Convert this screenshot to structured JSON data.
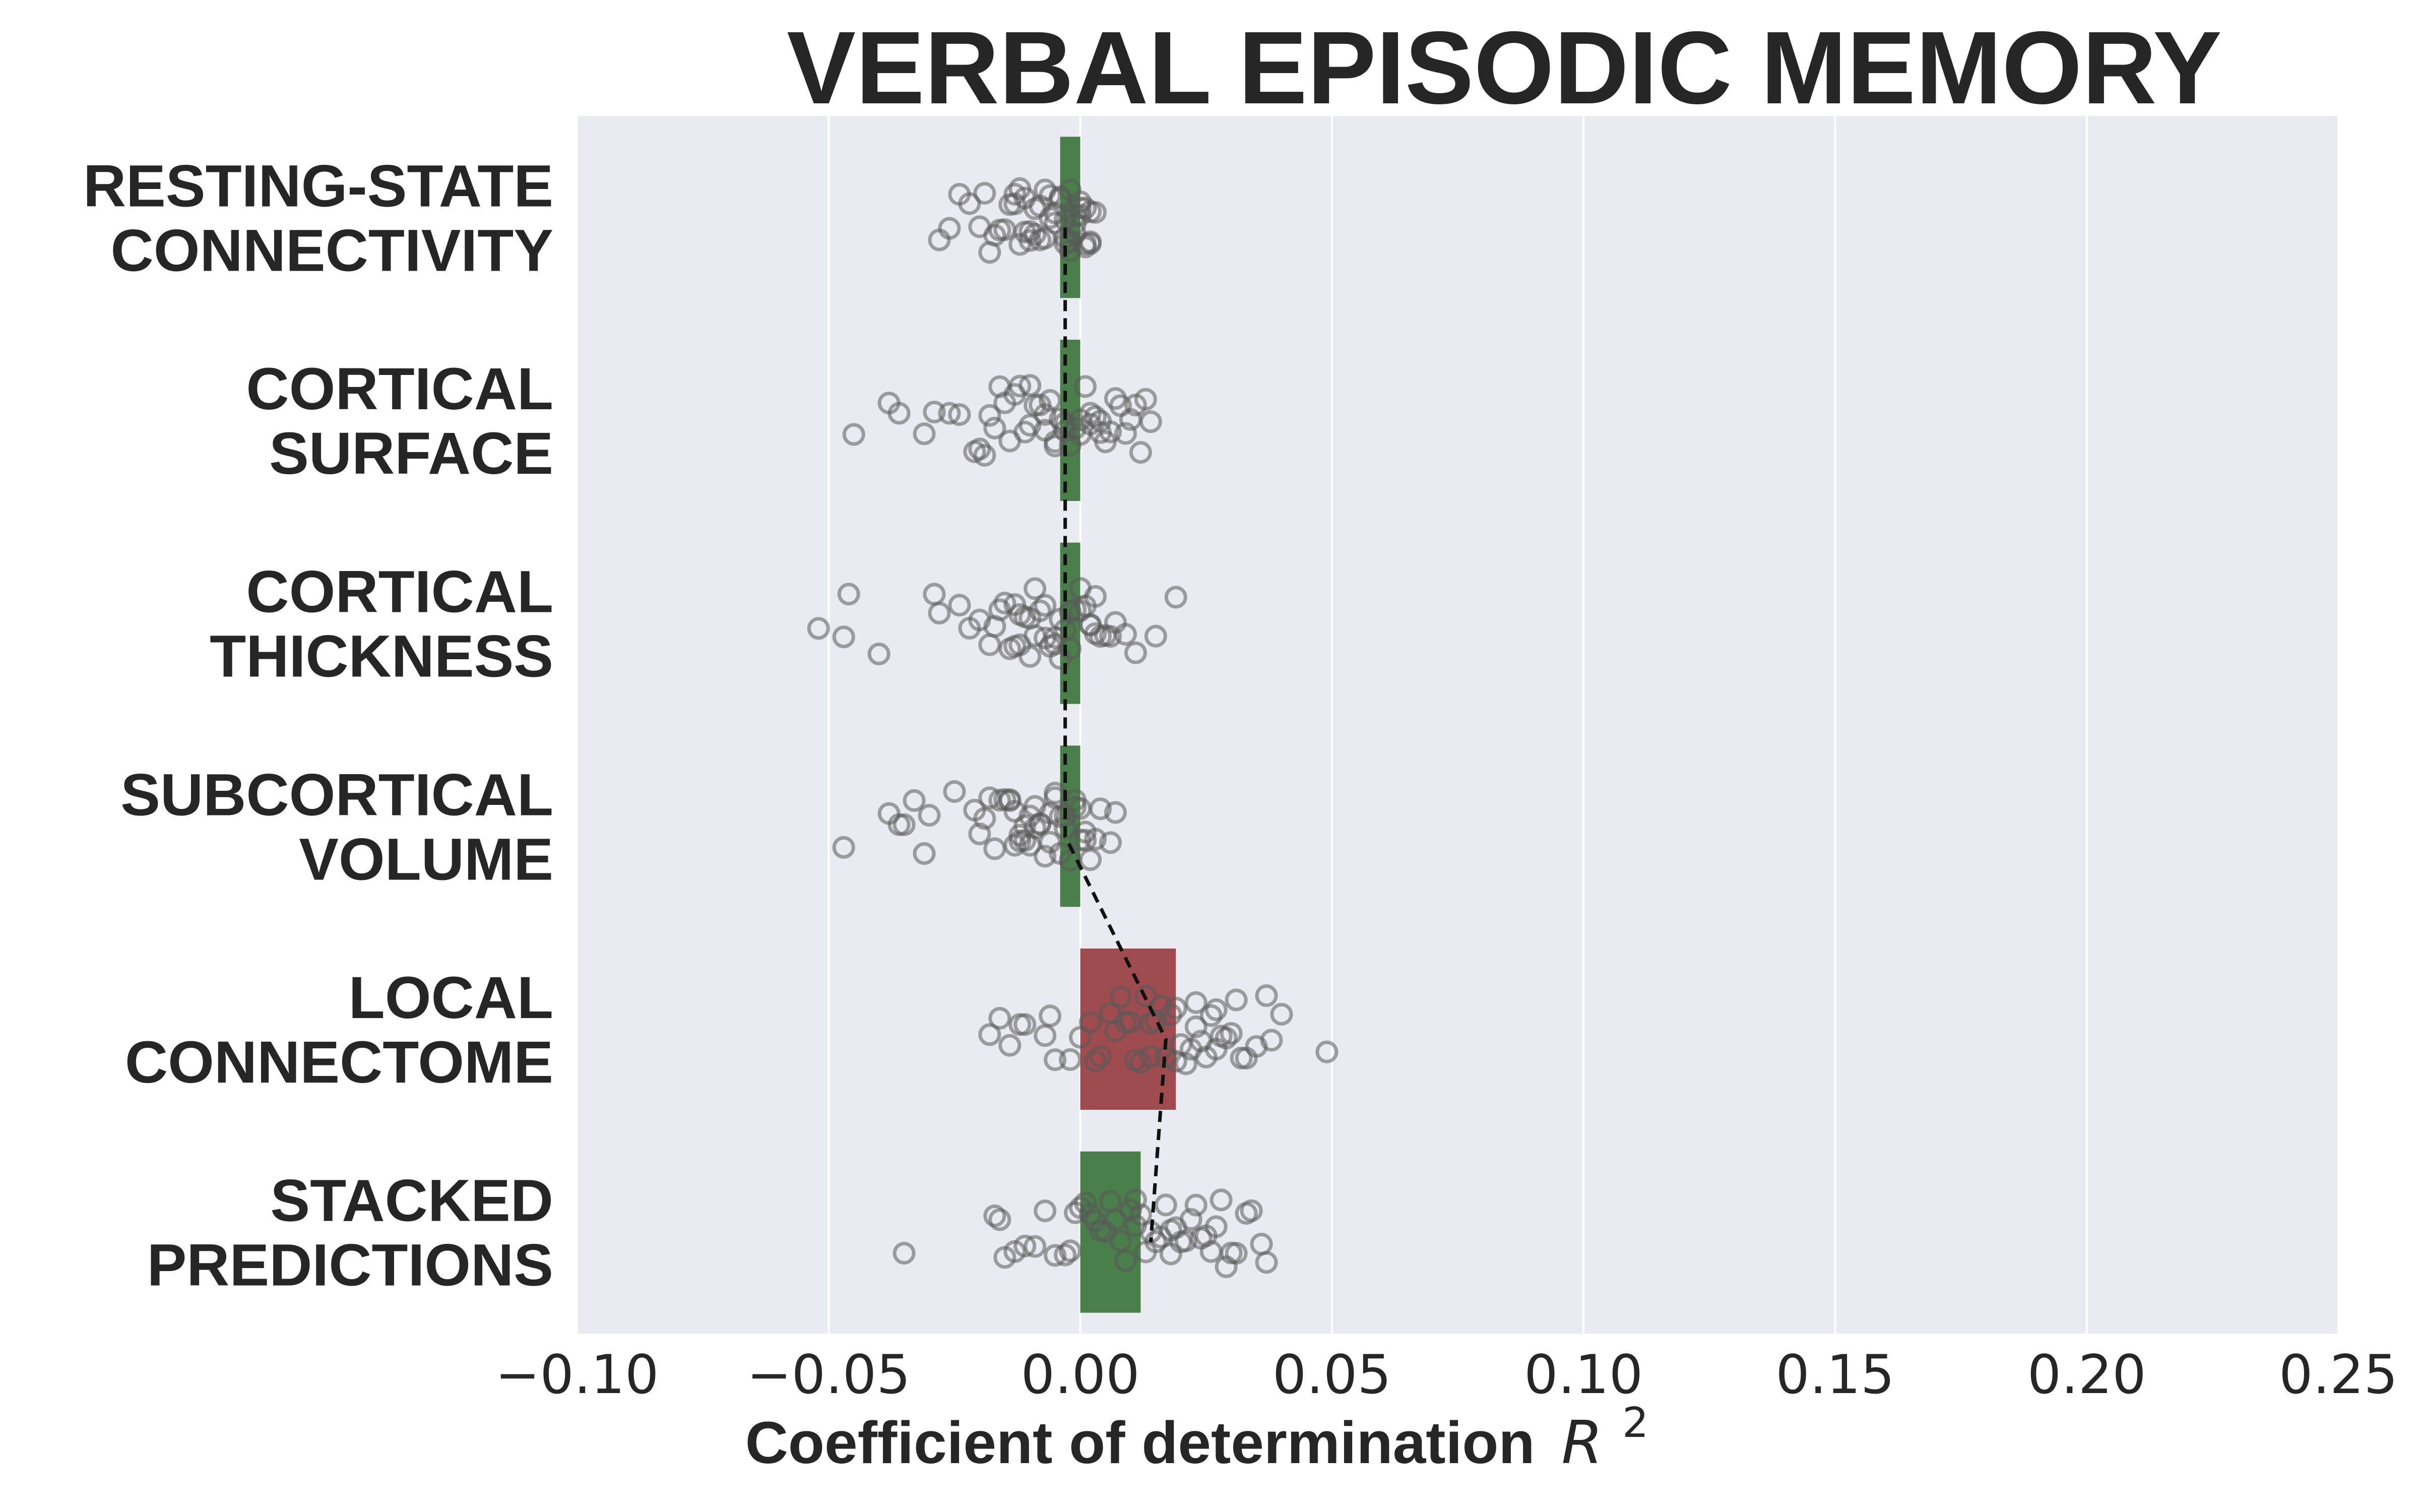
{
  "chart_data": {
    "type": "bar",
    "title": "VERBAL EPISODIC MEMORY",
    "xlabel": "Coefficient of determination",
    "xlabel_math": "R",
    "xlabel_sup": "2",
    "xlim": [
      -0.1,
      0.25
    ],
    "xticks": [
      -0.1,
      -0.05,
      0.0,
      0.05,
      0.1,
      0.15,
      0.2,
      0.25
    ],
    "xtick_labels": [
      "−0.10",
      "−0.05",
      "0.00",
      "0.05",
      "0.10",
      "0.15",
      "0.20",
      "0.25"
    ],
    "grid": true,
    "orientation": "horizontal",
    "categories": [
      [
        "RESTING-STATE",
        "CONNECTIVITY"
      ],
      [
        "CORTICAL",
        "SURFACE"
      ],
      [
        "CORTICAL",
        "THICKNESS"
      ],
      [
        "SUBCORTICAL",
        "VOLUME"
      ],
      [
        "LOCAL",
        "CONNECTOME"
      ],
      [
        "STACKED",
        "PREDICTIONS"
      ]
    ],
    "values": [
      -0.004,
      -0.004,
      -0.004,
      -0.004,
      0.019,
      0.012
    ],
    "bar_colors": [
      "#4a7e4a",
      "#4a7e4a",
      "#4a7e4a",
      "#4a7e4a",
      "#9e4c50",
      "#4a7e4a"
    ],
    "medians": [
      -0.003,
      -0.003,
      -0.003,
      -0.003,
      0.017,
      0.014
    ],
    "points": [
      [
        -0.026,
        -0.022,
        -0.02,
        -0.018,
        -0.016,
        -0.015,
        -0.013,
        -0.012,
        -0.011,
        -0.01,
        -0.009,
        -0.008,
        -0.007,
        -0.006,
        -0.005,
        -0.004,
        -0.004,
        -0.003,
        -0.003,
        -0.002,
        -0.002,
        -0.001,
        -0.001,
        0.0,
        0.0,
        0.001,
        0.001,
        0.002,
        0.002,
        0.003,
        -0.028,
        -0.024,
        -0.019,
        -0.014,
        -0.009,
        -0.006,
        -0.002,
        0.0,
        -0.017,
        -0.011,
        -0.005,
        0.001,
        -0.008,
        -0.013,
        -0.003,
        0.002,
        -0.01,
        -0.007,
        -0.001,
        -0.012
      ],
      [
        -0.031,
        -0.036,
        -0.045,
        -0.038,
        -0.029,
        -0.026,
        -0.024,
        -0.021,
        -0.018,
        -0.016,
        -0.015,
        -0.013,
        -0.011,
        -0.01,
        -0.009,
        -0.008,
        -0.007,
        -0.006,
        -0.005,
        -0.004,
        -0.003,
        -0.002,
        -0.001,
        0.0,
        0.001,
        0.002,
        0.003,
        0.004,
        0.006,
        0.008,
        0.01,
        0.012,
        0.013,
        0.014,
        -0.02,
        -0.017,
        -0.012,
        -0.007,
        -0.003,
        0.002,
        0.005,
        0.009,
        0.011,
        -0.014,
        -0.019,
        0.0,
        0.007,
        -0.01,
        0.004,
        -0.005
      ],
      [
        -0.052,
        -0.047,
        -0.046,
        -0.04,
        -0.029,
        -0.024,
        -0.02,
        -0.018,
        -0.016,
        -0.014,
        -0.013,
        -0.012,
        -0.011,
        -0.01,
        -0.009,
        -0.008,
        -0.007,
        -0.006,
        -0.005,
        -0.004,
        -0.003,
        -0.002,
        -0.001,
        0.0,
        0.001,
        0.002,
        0.003,
        0.004,
        0.005,
        0.007,
        0.009,
        0.011,
        0.015,
        0.019,
        -0.022,
        -0.015,
        -0.009,
        -0.004,
        0.0,
        0.006,
        -0.028,
        -0.012,
        -0.007,
        -0.002,
        0.003,
        -0.017,
        -0.01,
        -0.005,
        0.002,
        -0.013
      ],
      [
        -0.047,
        -0.038,
        -0.036,
        -0.035,
        -0.033,
        -0.031,
        -0.03,
        -0.025,
        -0.02,
        -0.019,
        -0.018,
        -0.016,
        -0.015,
        -0.014,
        -0.013,
        -0.012,
        -0.011,
        -0.01,
        -0.009,
        -0.008,
        -0.007,
        -0.006,
        -0.005,
        -0.004,
        -0.003,
        -0.002,
        -0.001,
        0.0,
        0.001,
        0.002,
        0.004,
        0.006,
        0.007,
        -0.017,
        -0.013,
        -0.009,
        -0.006,
        -0.003,
        0.0,
        0.003,
        -0.021,
        -0.014,
        -0.01,
        -0.005,
        -0.001,
        -0.011,
        -0.008,
        -0.004,
        0.001,
        -0.012
      ],
      [
        -0.018,
        -0.016,
        -0.012,
        -0.011,
        -0.007,
        -0.006,
        -0.005,
        -0.002,
        0.0,
        0.002,
        0.004,
        0.006,
        0.008,
        0.009,
        0.01,
        0.011,
        0.012,
        0.013,
        0.014,
        0.015,
        0.016,
        0.017,
        0.018,
        0.019,
        0.02,
        0.021,
        0.022,
        0.023,
        0.024,
        0.025,
        0.026,
        0.027,
        0.028,
        0.029,
        0.03,
        0.031,
        0.033,
        0.035,
        0.037,
        0.038,
        0.04,
        0.049,
        -0.014,
        0.003,
        0.007,
        0.014,
        0.019,
        0.023,
        0.027,
        0.032
      ],
      [
        -0.035,
        -0.017,
        -0.016,
        -0.015,
        -0.013,
        -0.011,
        -0.009,
        -0.007,
        -0.005,
        -0.003,
        -0.002,
        -0.001,
        0.0,
        0.001,
        0.002,
        0.003,
        0.004,
        0.005,
        0.006,
        0.007,
        0.008,
        0.009,
        0.01,
        0.011,
        0.012,
        0.013,
        0.014,
        0.015,
        0.016,
        0.017,
        0.018,
        0.019,
        0.02,
        0.021,
        0.022,
        0.023,
        0.024,
        0.025,
        0.026,
        0.027,
        0.028,
        0.029,
        0.03,
        0.031,
        0.033,
        0.034,
        0.036,
        0.037,
        0.011,
        0.018
      ]
    ]
  }
}
